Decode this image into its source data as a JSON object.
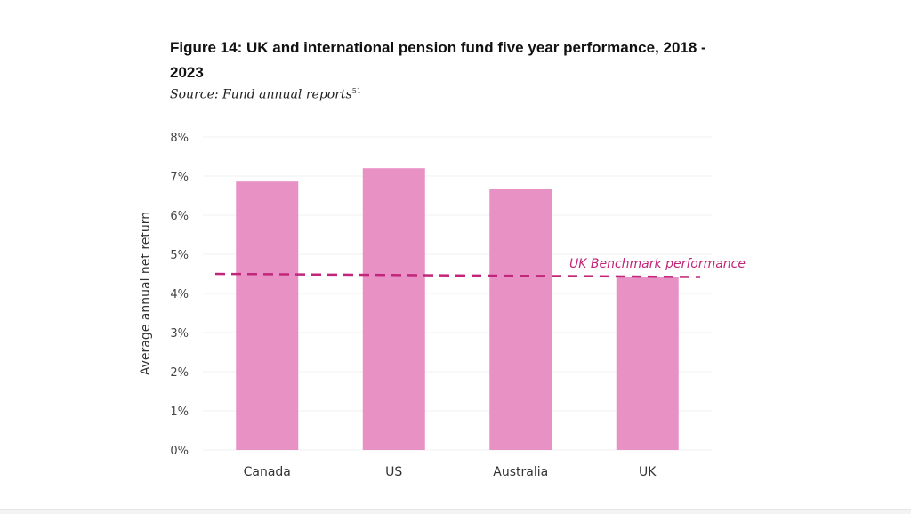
{
  "chart_data": {
    "type": "bar",
    "title": "Figure 14: UK and international pension fund five year performance, 2018 - 2023",
    "source": "Source: Fund annual reports",
    "source_footnote": "51",
    "xlabel": "",
    "ylabel": "Average annual net return",
    "categories": [
      "Canada",
      "US",
      "Australia",
      "UK"
    ],
    "values": [
      6.86,
      7.2,
      6.66,
      4.42
    ],
    "ylim": [
      0,
      8
    ],
    "yticks": [
      0,
      1,
      2,
      3,
      4,
      5,
      6,
      7,
      8
    ],
    "ytick_labels": [
      "0%",
      "1%",
      "2%",
      "3%",
      "4%",
      "5%",
      "6%",
      "7%",
      "8%"
    ],
    "grid": true,
    "bar_color": "#e891c5",
    "benchmark": {
      "label": "UK Benchmark performance",
      "start_value": 4.5,
      "end_value": 4.42,
      "color": "#c2267a"
    }
  }
}
